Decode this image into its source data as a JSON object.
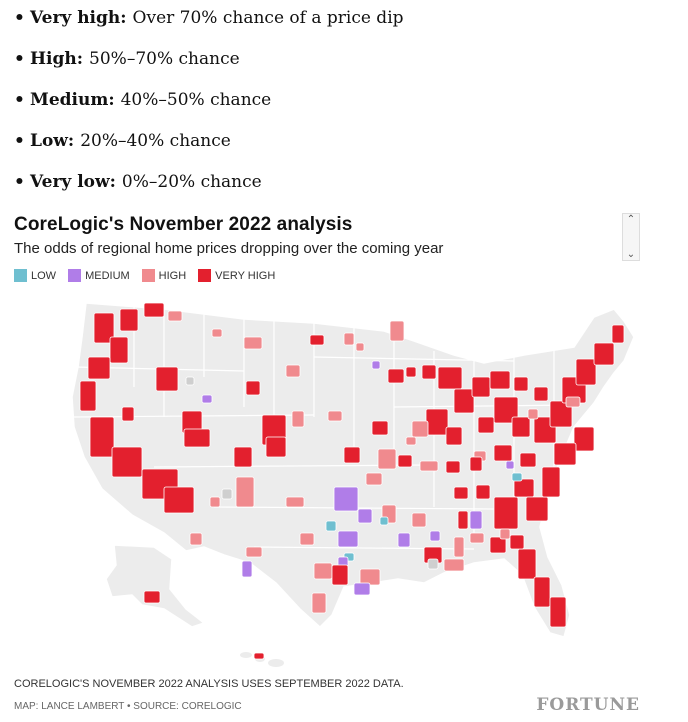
{
  "bullets": [
    {
      "term": "Very high:",
      "desc": "Over 70% chance of a price dip"
    },
    {
      "term": "High:",
      "desc": "50%–70% chance"
    },
    {
      "term": "Medium:",
      "desc": "40%–50% chance"
    },
    {
      "term": "Low:",
      "desc": "20%–40% chance"
    },
    {
      "term": "Very low:",
      "desc": "0%–20% chance"
    }
  ],
  "viz": {
    "title": "CoreLogic's November 2022 analysis",
    "subtitle": "The odds of regional home prices dropping over the coming year",
    "scroll_up": "⌃",
    "scroll_down": "⌄"
  },
  "legend": [
    {
      "label": "LOW",
      "color": "#6fbfd0"
    },
    {
      "label": "MEDIUM",
      "color": "#b07de8"
    },
    {
      "label": "HIGH",
      "color": "#f08a8e"
    },
    {
      "label": "VERY HIGH",
      "color": "#e3202e"
    }
  ],
  "colors": {
    "land": "#ececec",
    "border": "#ffffff",
    "verylow": "#cfcfcf"
  },
  "footer": {
    "note": "CORELOGIC'S NOVEMBER 2022 ANALYSIS USES SEPTEMBER 2022 DATA.",
    "credit": "MAP: LANCE LAMBERT • SOURCE: CORELOGIC",
    "brand": "FORTUNE"
  }
}
